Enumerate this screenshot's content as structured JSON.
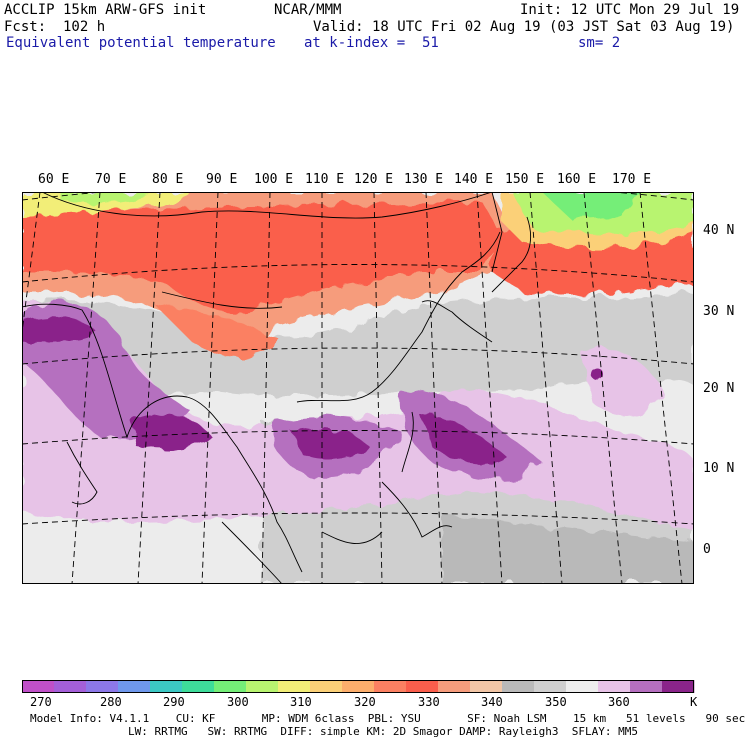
{
  "header": {
    "model": "ACCLIP 15km ARW-GFS init",
    "center": "NCAR/MMM",
    "init": "Init: 12 UTC Mon 29 Jul 19",
    "fcst": "Fcst:  102 h",
    "valid": "Valid: 18 UTC Fri 02 Aug 19 (03 JST Sat 03 Aug 19)",
    "field": "Equivalent potential temperature",
    "level": "at k-index =  51",
    "smooth": "sm= 2"
  },
  "map": {
    "lon_labels": [
      "60 E",
      "70 E",
      "80 E",
      "90 E",
      "100 E",
      "110 E",
      "120 E",
      "130 E",
      "140 E",
      "150 E",
      "160 E",
      "170 E"
    ],
    "lat_labels": [
      "40 N",
      "30 N",
      "20 N",
      "10 N",
      "0"
    ]
  },
  "colorbar": {
    "colors": [
      "#c050c8",
      "#a45fd8",
      "#8c78e8",
      "#6f98ec",
      "#3cc8c4",
      "#3edc9a",
      "#74ee78",
      "#b8f470",
      "#f2ee78",
      "#fbd078",
      "#fcae6c",
      "#fb8062",
      "#fa5e4c",
      "#f69c7c",
      "#f2c6a6",
      "#b9b9b9",
      "#cfcfcf",
      "#ededed",
      "#e7c3e7",
      "#b56fbf",
      "#8a248a"
    ],
    "tick_labels": [
      "270",
      "280",
      "290",
      "300",
      "310",
      "320",
      "330",
      "340",
      "350",
      "360"
    ],
    "unit": "K"
  },
  "footer": {
    "line1": "Model Info: V4.1.1    CU: KF       MP: WDM 6class  PBL: YSU       SF: Noah LSM    15 km   51 levels   90 sec",
    "line2": "LW: RRTMG   SW: RRTMG  DIFF: simple KM: 2D Smagor DAMP: Rayleigh3  SFLAY: MM5"
  }
}
